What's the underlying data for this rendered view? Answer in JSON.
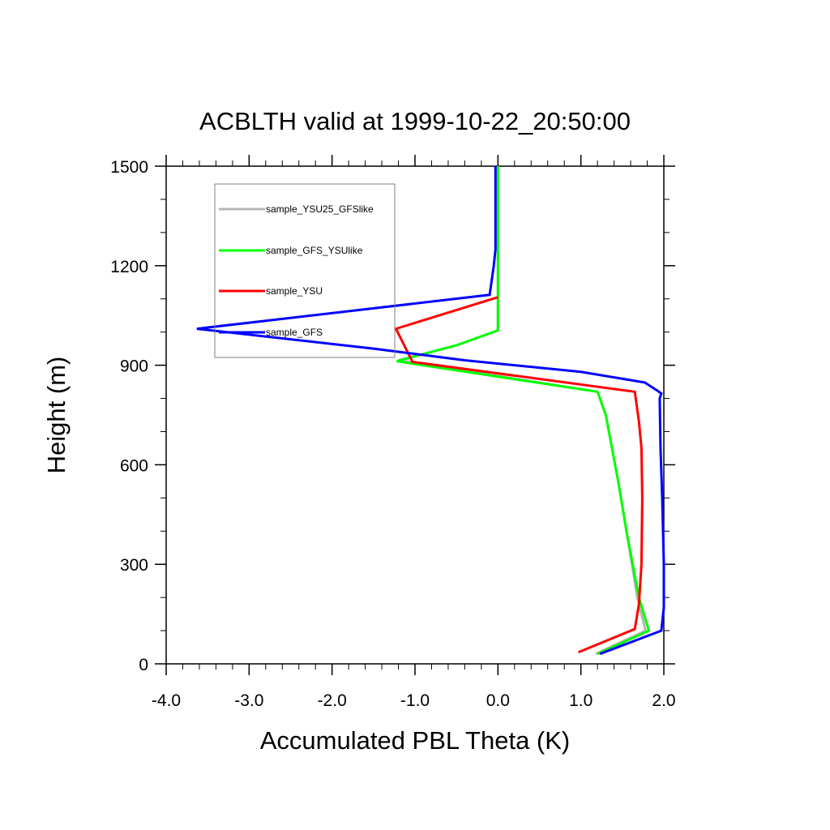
{
  "chart_data": {
    "type": "line",
    "title": "ACBLTH valid at 1999-10-22_20:50:00",
    "xlabel": "Accumulated PBL Theta (K)",
    "ylabel": "Height (m)",
    "xlim": [
      -4.0,
      2.0
    ],
    "ylim": [
      0,
      1500
    ],
    "xticks": [
      -4.0,
      -3.0,
      -2.0,
      -1.0,
      0.0,
      1.0,
      2.0
    ],
    "xtick_labels": [
      "-4.0",
      "-3.0",
      "-2.0",
      "-1.0",
      "0.0",
      "1.0",
      "2.0"
    ],
    "yticks": [
      0,
      300,
      600,
      900,
      1200,
      1500
    ],
    "ytick_labels": [
      "0",
      "300",
      "600",
      "900",
      "1200",
      "1500"
    ],
    "grid": false,
    "legend_position": "top-left",
    "series": [
      {
        "name": "sample_YSU25_GFSlike",
        "color": "#b4b4b4",
        "x": [
          1.18,
          1.78,
          1.68,
          1.55,
          1.45,
          1.3,
          1.2,
          -1.2,
          -0.5,
          0.0,
          0.0,
          0.0,
          0.0
        ],
        "y": [
          30,
          100,
          200,
          400,
          550,
          750,
          820,
          915,
          960,
          1005,
          1100,
          1200,
          1500
        ]
      },
      {
        "name": "sample_GFS_YSUlike",
        "color": "#00ff00",
        "x": [
          1.2,
          1.82,
          1.7,
          1.55,
          1.45,
          1.3,
          1.2,
          -1.22,
          -0.5,
          0.0,
          0.0,
          0.0,
          0.0
        ],
        "y": [
          30,
          100,
          200,
          400,
          550,
          750,
          820,
          912,
          960,
          1005,
          1100,
          1200,
          1500
        ]
      },
      {
        "name": "sample_YSU",
        "color": "#ff0000",
        "x": [
          0.97,
          1.65,
          1.7,
          1.73,
          1.74,
          1.73,
          1.7,
          1.65,
          -1.03,
          -1.23,
          0.0
        ],
        "y": [
          35,
          105,
          180,
          300,
          500,
          650,
          730,
          820,
          910,
          1010,
          1105
        ]
      },
      {
        "name": "sample_GFS",
        "color": "#0000ff",
        "x": [
          1.23,
          1.97,
          2.0,
          2.0,
          1.98,
          1.96,
          1.95,
          1.97,
          1.93,
          1.77,
          1.0,
          -0.4,
          -1.5,
          -3.63,
          -0.1,
          -0.05,
          -0.03,
          -0.03
        ],
        "y": [
          30,
          100,
          170,
          300,
          500,
          650,
          800,
          815,
          822,
          848,
          880,
          915,
          950,
          1010,
          1112,
          1200,
          1250,
          1500
        ]
      }
    ]
  }
}
